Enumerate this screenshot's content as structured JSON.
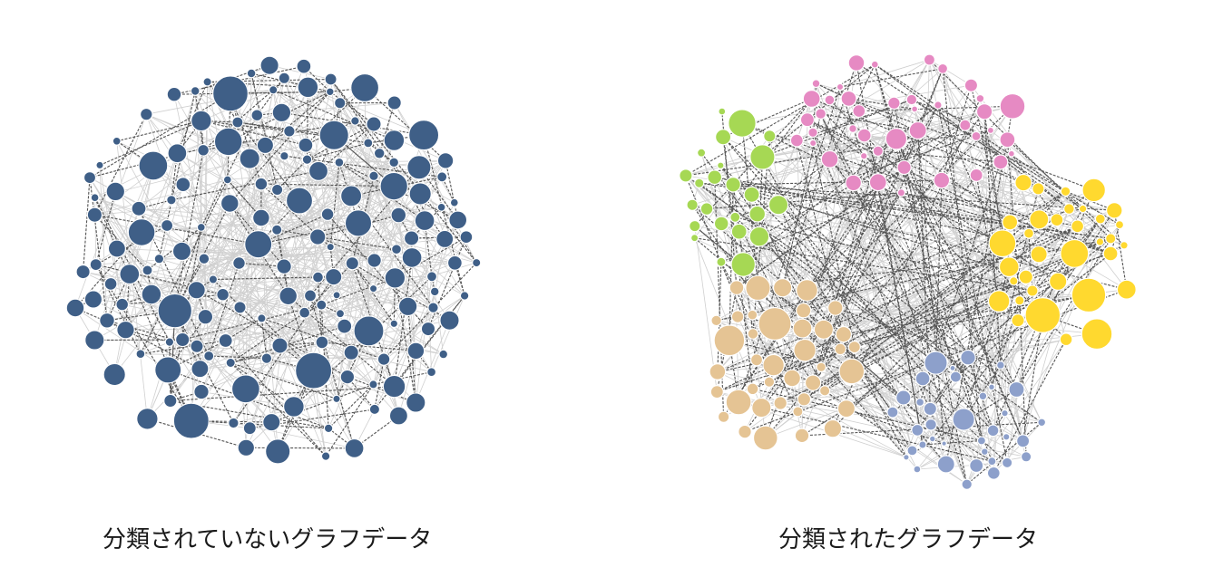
{
  "left_graph": {
    "caption": "分類されていないグラフデータ",
    "node_color": "#3f5f87"
  },
  "right_graph": {
    "caption": "分類されたグラフデータ",
    "clusters": [
      {
        "name": "pink",
        "color": "#e68ac3"
      },
      {
        "name": "green",
        "color": "#a6d854"
      },
      {
        "name": "yellow",
        "color": "#ffd92f"
      },
      {
        "name": "tan",
        "color": "#e5c494"
      },
      {
        "name": "periwinkle",
        "color": "#8da0cb"
      }
    ]
  },
  "edge_colors": {
    "light": "#d0d0d0",
    "dark": "#555555"
  }
}
